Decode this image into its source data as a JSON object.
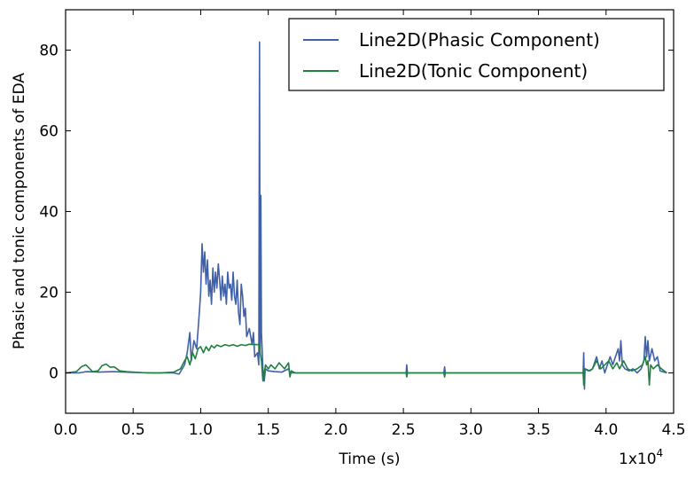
{
  "chart_data": {
    "type": "line",
    "title": "",
    "xlabel": "Time (s)",
    "ylabel": "Phasic and tonic components of EDA",
    "x_multiplier": "1x10",
    "x_multiplier_exp": "4",
    "xlim": [
      0,
      45000
    ],
    "ylim": [
      -10,
      90
    ],
    "xticks": [
      0,
      5000,
      10000,
      15000,
      20000,
      25000,
      30000,
      35000,
      40000,
      45000
    ],
    "xtick_labels": [
      "0.0",
      "0.5",
      "1.0",
      "1.5",
      "2.0",
      "2.5",
      "3.0",
      "3.5",
      "4.0",
      "4.5"
    ],
    "yticks": [
      0,
      20,
      40,
      60,
      80
    ],
    "ytick_labels": [
      "0",
      "20",
      "40",
      "60",
      "80"
    ],
    "grid": false,
    "legend_position": "top-right",
    "series": [
      {
        "name": "Line2D(Phasic Component)",
        "color": "#4060a8",
        "points": [
          [
            0,
            0
          ],
          [
            1000,
            0
          ],
          [
            1500,
            0.3
          ],
          [
            2500,
            0.2
          ],
          [
            3500,
            0.3
          ],
          [
            5000,
            0.1
          ],
          [
            6500,
            0
          ],
          [
            8000,
            0
          ],
          [
            8400,
            -0.3
          ],
          [
            8800,
            2
          ],
          [
            9000,
            5
          ],
          [
            9200,
            10
          ],
          [
            9300,
            3
          ],
          [
            9500,
            8
          ],
          [
            9700,
            6
          ],
          [
            9900,
            15
          ],
          [
            10000,
            20
          ],
          [
            10100,
            32
          ],
          [
            10200,
            25
          ],
          [
            10300,
            30
          ],
          [
            10400,
            22
          ],
          [
            10500,
            28
          ],
          [
            10600,
            19
          ],
          [
            10700,
            23
          ],
          [
            10800,
            17
          ],
          [
            10900,
            26
          ],
          [
            11000,
            20
          ],
          [
            11100,
            25
          ],
          [
            11200,
            21
          ],
          [
            11300,
            27
          ],
          [
            11400,
            23
          ],
          [
            11500,
            18
          ],
          [
            11600,
            24
          ],
          [
            11700,
            19
          ],
          [
            11800,
            22
          ],
          [
            11900,
            17
          ],
          [
            12000,
            25
          ],
          [
            12100,
            21
          ],
          [
            12200,
            22
          ],
          [
            12300,
            18
          ],
          [
            12400,
            25
          ],
          [
            12500,
            19
          ],
          [
            12600,
            17
          ],
          [
            12700,
            23
          ],
          [
            12800,
            15
          ],
          [
            12900,
            12
          ],
          [
            13000,
            22
          ],
          [
            13100,
            19
          ],
          [
            13200,
            14
          ],
          [
            13300,
            16
          ],
          [
            13400,
            9
          ],
          [
            13600,
            11
          ],
          [
            13800,
            7
          ],
          [
            13900,
            10
          ],
          [
            14000,
            4
          ],
          [
            14200,
            5
          ],
          [
            14300,
            2
          ],
          [
            14350,
            82
          ],
          [
            14400,
            5
          ],
          [
            14450,
            44
          ],
          [
            14500,
            10
          ],
          [
            14600,
            1
          ],
          [
            14700,
            -2
          ],
          [
            14800,
            1
          ],
          [
            15000,
            0.5
          ],
          [
            15500,
            0.3
          ],
          [
            16000,
            0.2
          ],
          [
            16500,
            1
          ],
          [
            16600,
            0
          ],
          [
            18000,
            0
          ],
          [
            20000,
            0
          ],
          [
            22000,
            0
          ],
          [
            25200,
            0
          ],
          [
            25250,
            2
          ],
          [
            25300,
            0
          ],
          [
            28000,
            0
          ],
          [
            28050,
            1.5
          ],
          [
            28100,
            0
          ],
          [
            32000,
            0
          ],
          [
            35000,
            0
          ],
          [
            38300,
            0
          ],
          [
            38350,
            5
          ],
          [
            38400,
            -4
          ],
          [
            38450,
            1
          ],
          [
            38800,
            0.5
          ],
          [
            39000,
            1
          ],
          [
            39300,
            4
          ],
          [
            39500,
            1
          ],
          [
            39700,
            3
          ],
          [
            39900,
            0
          ],
          [
            40100,
            2
          ],
          [
            40300,
            4
          ],
          [
            40500,
            2
          ],
          [
            40700,
            4
          ],
          [
            40900,
            6
          ],
          [
            41000,
            3
          ],
          [
            41100,
            8
          ],
          [
            41200,
            2
          ],
          [
            41400,
            1
          ],
          [
            41700,
            0.5
          ],
          [
            42000,
            1
          ],
          [
            42300,
            0
          ],
          [
            42600,
            1
          ],
          [
            42800,
            3
          ],
          [
            42900,
            9
          ],
          [
            43000,
            4
          ],
          [
            43100,
            8
          ],
          [
            43200,
            3
          ],
          [
            43400,
            6
          ],
          [
            43600,
            3
          ],
          [
            43800,
            4
          ],
          [
            44000,
            0.5
          ],
          [
            44500,
            0
          ]
        ]
      },
      {
        "name": "Line2D(Tonic Component)",
        "color": "#208040",
        "points": [
          [
            0,
            0
          ],
          [
            800,
            0.3
          ],
          [
            1200,
            1.6
          ],
          [
            1500,
            2
          ],
          [
            1800,
            1
          ],
          [
            2000,
            0.3
          ],
          [
            2400,
            0.5
          ],
          [
            2700,
            1.8
          ],
          [
            3000,
            2.2
          ],
          [
            3300,
            1.4
          ],
          [
            3600,
            1.5
          ],
          [
            4000,
            0.5
          ],
          [
            4500,
            0.3
          ],
          [
            5000,
            0.2
          ],
          [
            5500,
            0.1
          ],
          [
            6000,
            0
          ],
          [
            7000,
            0
          ],
          [
            8000,
            0.2
          ],
          [
            8500,
            1
          ],
          [
            8800,
            3
          ],
          [
            9000,
            4
          ],
          [
            9200,
            2
          ],
          [
            9400,
            5
          ],
          [
            9600,
            3.5
          ],
          [
            9800,
            6
          ],
          [
            10000,
            6.5
          ],
          [
            10200,
            5
          ],
          [
            10400,
            6.5
          ],
          [
            10600,
            5.5
          ],
          [
            10800,
            6.8
          ],
          [
            11000,
            6.2
          ],
          [
            11200,
            6.9
          ],
          [
            11500,
            6.5
          ],
          [
            11800,
            7
          ],
          [
            12100,
            6.7
          ],
          [
            12400,
            7
          ],
          [
            12700,
            6.6
          ],
          [
            13000,
            7
          ],
          [
            13300,
            6.8
          ],
          [
            13600,
            7.1
          ],
          [
            14000,
            7
          ],
          [
            14300,
            7
          ],
          [
            14400,
            5
          ],
          [
            14500,
            3
          ],
          [
            14600,
            -2
          ],
          [
            14700,
            0
          ],
          [
            14800,
            2
          ],
          [
            15000,
            1
          ],
          [
            15200,
            2
          ],
          [
            15500,
            1
          ],
          [
            15800,
            2.5
          ],
          [
            16200,
            1
          ],
          [
            16500,
            2.5
          ],
          [
            16600,
            -1
          ],
          [
            16700,
            0.5
          ],
          [
            17000,
            0
          ],
          [
            20000,
            0
          ],
          [
            23000,
            0
          ],
          [
            25200,
            0
          ],
          [
            25250,
            -1
          ],
          [
            25300,
            0
          ],
          [
            28000,
            0
          ],
          [
            28050,
            -1
          ],
          [
            28100,
            0
          ],
          [
            31000,
            0
          ],
          [
            35000,
            0
          ],
          [
            38300,
            0
          ],
          [
            38350,
            -3
          ],
          [
            38400,
            1
          ],
          [
            38700,
            0.5
          ],
          [
            39000,
            1
          ],
          [
            39300,
            3
          ],
          [
            39600,
            1
          ],
          [
            39900,
            2
          ],
          [
            40200,
            3
          ],
          [
            40500,
            1
          ],
          [
            40800,
            2.5
          ],
          [
            41000,
            1
          ],
          [
            41300,
            3
          ],
          [
            41600,
            1
          ],
          [
            41900,
            0.5
          ],
          [
            42300,
            1
          ],
          [
            42700,
            2
          ],
          [
            42900,
            4
          ],
          [
            43000,
            2
          ],
          [
            43100,
            3
          ],
          [
            43200,
            -3
          ],
          [
            43300,
            2
          ],
          [
            43500,
            1
          ],
          [
            43800,
            2
          ],
          [
            44100,
            1
          ],
          [
            44500,
            0
          ]
        ]
      }
    ]
  }
}
